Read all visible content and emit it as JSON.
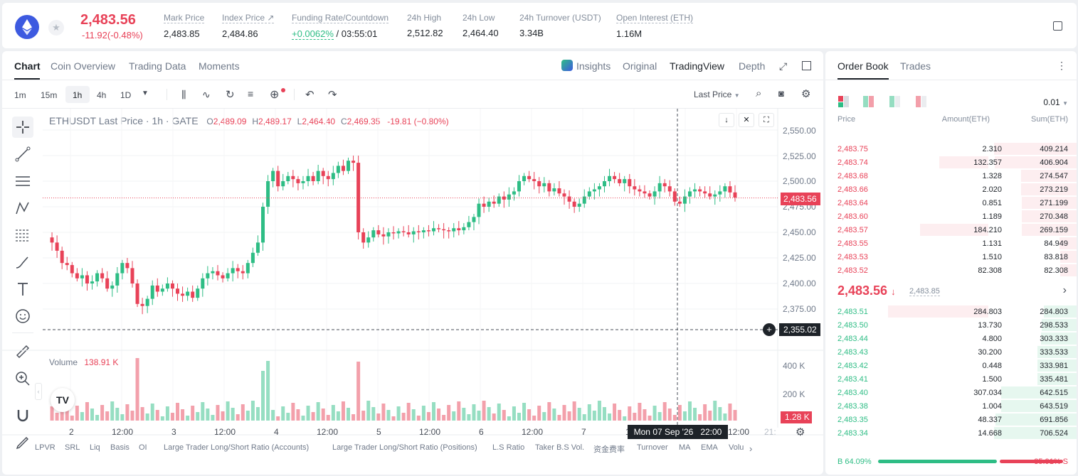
{
  "header": {
    "symbol_icon": "eth-logo-icon",
    "price": "2,483.56",
    "change": "-11.92(-0.48%)",
    "stats": [
      {
        "label": "Mark Price",
        "value": "2,483.85"
      },
      {
        "label": "Index Price ↗",
        "value": "2,484.86"
      },
      {
        "label": "Funding Rate/Countdown",
        "value_green": "+0.0062%",
        "value": "/ 03:55:01"
      },
      {
        "label": "24h High",
        "value": "2,512.82"
      },
      {
        "label": "24h Low",
        "value": "2,464.40"
      },
      {
        "label": "24h Turnover (USDT)",
        "value": "3.34B"
      },
      {
        "label": "Open Interest (ETH)",
        "value": "1.16M"
      }
    ]
  },
  "chart_tabs": [
    "Chart",
    "Coin Overview",
    "Trading Data",
    "Moments"
  ],
  "view_tabs": {
    "insights": "Insights",
    "original": "Original",
    "tradingview": "TradingView",
    "depth": "Depth"
  },
  "intervals": [
    "1m",
    "15m",
    "1h",
    "4h",
    "1D"
  ],
  "last_price_select": "Last Price",
  "chart_header": {
    "title": "ETHUSDT Last Price · 1h · GATE",
    "ohlc": [
      {
        "k": "O",
        "v": "2,489.09"
      },
      {
        "k": "H",
        "v": "2,489.17"
      },
      {
        "k": "L",
        "v": "2,464.40"
      },
      {
        "k": "C",
        "v": "2,469.35"
      }
    ],
    "change": "-19.81 (−0.80%)"
  },
  "volume": {
    "label": "Volume",
    "value": "138.91 K",
    "axis": [
      "400 K",
      "200 K"
    ],
    "current_tag": "1.28 K"
  },
  "price_axis": [
    "2,550.00",
    "2,525.00",
    "2,500.00",
    "2,475.00",
    "2,450.00",
    "2,425.00",
    "2,400.00",
    "2,375.00"
  ],
  "price_tag": "2,483.56",
  "cursor_tag": "2,355.02",
  "time_axis": [
    "2",
    "12:00",
    "3",
    "12:00",
    "4",
    "12:00",
    "5",
    "12:00",
    "6",
    "12:00",
    "7",
    "1",
    "12:00",
    "21:"
  ],
  "crosshair_label": "Mon 07 Sep '26   22:00",
  "bottom_tabs": [
    "LPVR",
    "SRL",
    "Liq",
    "Basis",
    "OI",
    "Large Trader Long/Short Ratio (Accounts)",
    "Large Trader Long/Short Ratio (Positions)",
    "L.S Ratio",
    "Taker B.S Vol.",
    "资金费率",
    "Turnover",
    "MA",
    "EMA",
    "Volu"
  ],
  "orderbook": {
    "tabs": [
      "Order Book",
      "Trades"
    ],
    "precision": "0.01",
    "headers": [
      "Price",
      "Amount(ETH)",
      "Sum(ETH)"
    ],
    "asks": [
      [
        "2,483.75",
        "2.310",
        "409.214"
      ],
      [
        "2,483.74",
        "132.357",
        "406.904"
      ],
      [
        "2,483.68",
        "1.328",
        "274.547"
      ],
      [
        "2,483.66",
        "2.020",
        "273.219"
      ],
      [
        "2,483.64",
        "0.851",
        "271.199"
      ],
      [
        "2,483.60",
        "1.189",
        "270.348"
      ],
      [
        "2,483.57",
        "184.210",
        "269.159"
      ],
      [
        "2,483.55",
        "1.131",
        "84.949"
      ],
      [
        "2,483.53",
        "1.510",
        "83.818"
      ],
      [
        "2,483.52",
        "82.308",
        "82.308"
      ]
    ],
    "ask_depth": [
      1.0,
      0.99,
      0.67,
      0.67,
      0.66,
      0.66,
      0.66,
      0.21,
      0.2,
      0.2
    ],
    "ask_amt_depth": [
      0,
      0.43,
      0,
      0,
      0,
      0,
      0.6,
      0,
      0,
      0
    ],
    "mid_price": "2,483.56",
    "mid_mark": "2,483.85",
    "bids": [
      [
        "2,483.51",
        "284.803",
        "284.803"
      ],
      [
        "2,483.50",
        "13.730",
        "298.533"
      ],
      [
        "2,483.44",
        "4.800",
        "303.333"
      ],
      [
        "2,483.43",
        "30.200",
        "333.533"
      ],
      [
        "2,483.42",
        "0.448",
        "333.981"
      ],
      [
        "2,483.41",
        "1.500",
        "335.481"
      ],
      [
        "2,483.40",
        "307.034",
        "642.515"
      ],
      [
        "2,483.38",
        "1.004",
        "643.519"
      ],
      [
        "2,483.35",
        "48.337",
        "691.856"
      ],
      [
        "2,483.34",
        "14.668",
        "706.524"
      ]
    ],
    "bid_depth": [
      0.4,
      0.42,
      0.43,
      0.47,
      0.47,
      0.47,
      0.91,
      0.91,
      0.98,
      1.0
    ],
    "bid_amt_depth": [
      0.88,
      0,
      0,
      0,
      0,
      0,
      0,
      0,
      0,
      0
    ],
    "buy_ratio": "B 64.09%",
    "sell_ratio": "35.91% S",
    "buy_fraction": 0.6409
  },
  "colors": {
    "up": "#2ebd85",
    "down": "#e84258"
  }
}
